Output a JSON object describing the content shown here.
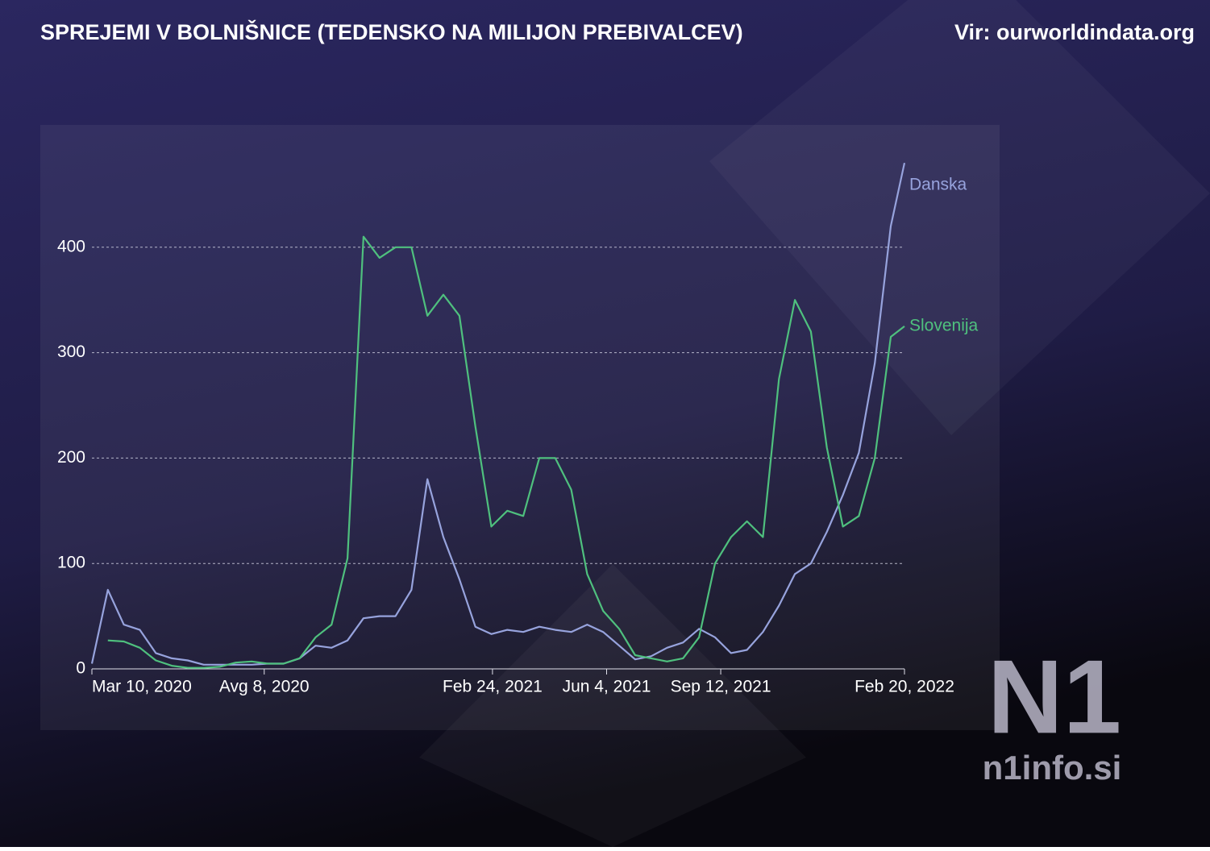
{
  "chart_data": {
    "type": "line",
    "title": "SPREJEMI V BOLNIŠNICE (TEDENSKO NA MILIJON PREBIVALCEV)",
    "source": "Vir: ourworldindata.org",
    "x": [
      "2020-03-10",
      "2020-03-24",
      "2020-04-07",
      "2020-04-21",
      "2020-05-05",
      "2020-05-19",
      "2020-06-02",
      "2020-06-16",
      "2020-06-30",
      "2020-07-14",
      "2020-07-28",
      "2020-08-11",
      "2020-08-25",
      "2020-09-08",
      "2020-09-22",
      "2020-10-06",
      "2020-10-20",
      "2020-11-03",
      "2020-11-17",
      "2020-12-01",
      "2020-12-15",
      "2020-12-29",
      "2021-01-12",
      "2021-01-26",
      "2021-02-09",
      "2021-02-23",
      "2021-03-09",
      "2021-03-23",
      "2021-04-06",
      "2021-04-20",
      "2021-05-04",
      "2021-05-18",
      "2021-06-01",
      "2021-06-15",
      "2021-06-29",
      "2021-07-13",
      "2021-07-27",
      "2021-08-10",
      "2021-08-24",
      "2021-09-07",
      "2021-09-21",
      "2021-10-05",
      "2021-10-19",
      "2021-11-02",
      "2021-11-16",
      "2021-11-30",
      "2021-12-14",
      "2021-12-28",
      "2022-01-11",
      "2022-01-25",
      "2022-02-08",
      "2022-02-20"
    ],
    "series": [
      {
        "name": "Danska",
        "color": "#97a3dd",
        "values": [
          5,
          75,
          42,
          37,
          15,
          10,
          8,
          4,
          4,
          4,
          4,
          5,
          5,
          10,
          22,
          20,
          27,
          48,
          50,
          50,
          75,
          180,
          125,
          85,
          40,
          33,
          37,
          35,
          40,
          37,
          35,
          42,
          35,
          22,
          9,
          12,
          20,
          25,
          38,
          30,
          15,
          18,
          35,
          60,
          90,
          100,
          130,
          165,
          205,
          290,
          420,
          480
        ]
      },
      {
        "name": "Slovenija",
        "color": "#4fc07e",
        "values": [
          null,
          27,
          26,
          20,
          8,
          3,
          1,
          1,
          2,
          6,
          7,
          5,
          5,
          10,
          30,
          42,
          105,
          410,
          390,
          400,
          400,
          335,
          355,
          335,
          230,
          135,
          150,
          145,
          200,
          200,
          170,
          90,
          55,
          38,
          13,
          10,
          7,
          10,
          30,
          100,
          125,
          140,
          125,
          275,
          350,
          320,
          210,
          135,
          145,
          200,
          315,
          325
        ]
      }
    ],
    "xlim": [
      "2020-03-10",
      "2022-02-20"
    ],
    "xticks": [
      {
        "value": "2020-03-10",
        "label": "Mar 10, 2020"
      },
      {
        "value": "2020-08-08",
        "label": "Avg 8, 2020"
      },
      {
        "value": "2021-02-24",
        "label": "Feb 24, 2021"
      },
      {
        "value": "2021-06-04",
        "label": "Jun 4, 2021"
      },
      {
        "value": "2021-09-12",
        "label": "Sep 12, 2021"
      },
      {
        "value": "2022-02-20",
        "label": "Feb 20, 2022"
      }
    ],
    "ylim": [
      0,
      500
    ],
    "yticks": [
      0,
      100,
      200,
      300,
      400
    ],
    "grid": true
  },
  "watermark": {
    "brand": "N1",
    "site": "n1info.si"
  }
}
